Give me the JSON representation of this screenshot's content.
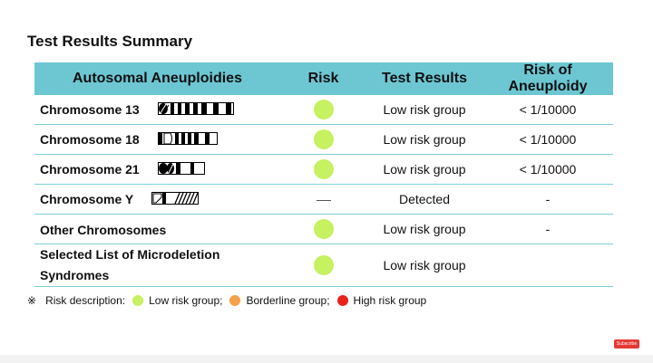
{
  "title": "Test Results Summary",
  "headers": [
    "Autosomal Aneuploidies",
    "Risk",
    "Test Results",
    "Risk of Aneuploidy"
  ],
  "rows": [
    {
      "name": "Chromosome 13",
      "risk": "low",
      "result": "Low risk group",
      "aneuploidy": "< 1/10000"
    },
    {
      "name": "Chromosome 18",
      "risk": "low",
      "result": "Low risk group",
      "aneuploidy": "< 1/10000"
    },
    {
      "name": "Chromosome 21",
      "risk": "low",
      "result": "Low risk group",
      "aneuploidy": "< 1/10000"
    },
    {
      "name": "Chromosome Y",
      "risk": "none",
      "result": "Detected",
      "aneuploidy": "-"
    },
    {
      "name": "Other Chromosomes",
      "risk": "low",
      "result": "Low risk group",
      "aneuploidy": "-"
    },
    {
      "name_line1": "Selected List of Microdeletion",
      "name_line2": "Syndromes",
      "risk": "low",
      "result": "Low risk group",
      "aneuploidy": ""
    }
  ],
  "legend": {
    "symbol": "※",
    "label": "Risk description:",
    "items": [
      {
        "label": "Low risk group;",
        "color": "#c6f160"
      },
      {
        "label": "Borderline group;",
        "color": "#f5a04a"
      },
      {
        "label": "High risk group",
        "color": "#e8231c"
      }
    ]
  },
  "colors": {
    "header_bg": "#6cc7d3",
    "low_risk_dot": "#c6f160"
  },
  "badge": "Subscribe"
}
